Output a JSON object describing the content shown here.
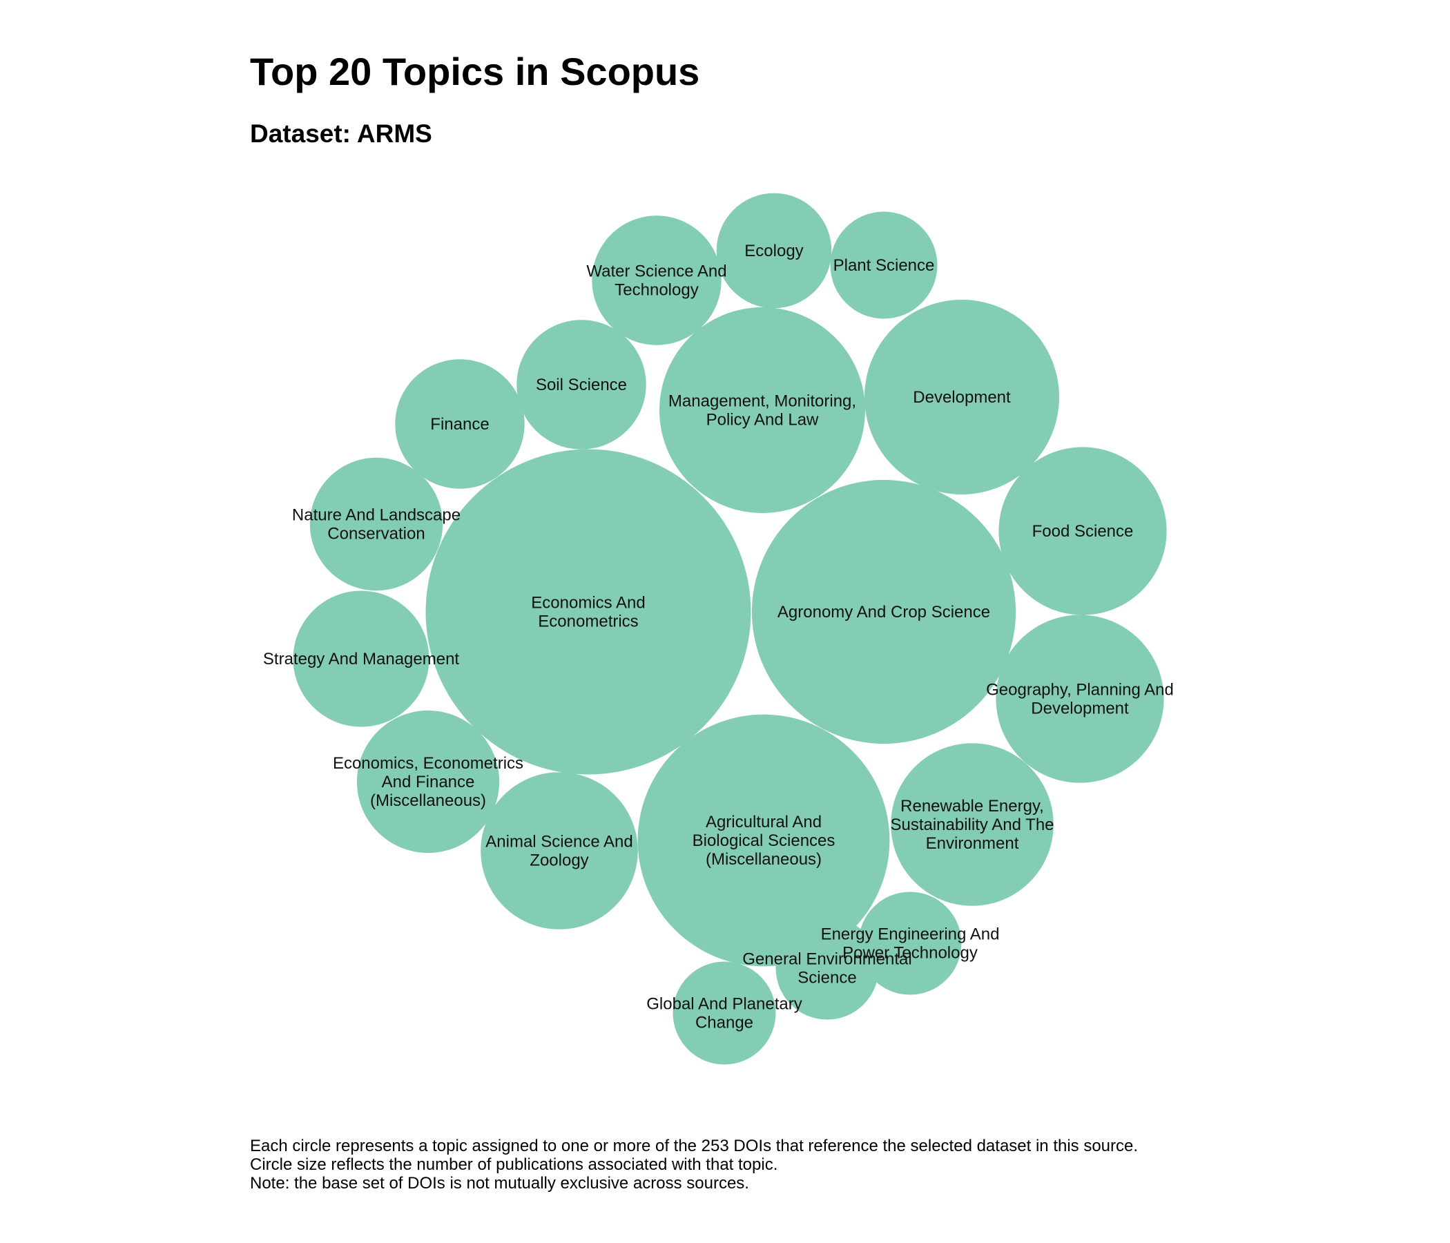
{
  "chart_data": {
    "type": "bubble",
    "title": "Top 20 Topics in Scopus",
    "subtitle": "Dataset: ARMS",
    "color": "#84cdb5",
    "topics": [
      {
        "name": "Economics And Econometrics",
        "label_lines": [
          "Economics And",
          "Econometrics"
        ],
        "value": 120
      },
      {
        "name": "Agronomy And Crop Science",
        "label_lines": [
          "Agronomy And Crop Science"
        ],
        "value": 79
      },
      {
        "name": "Agricultural And Biological Sciences (Miscellaneous)",
        "label_lines": [
          "Agricultural And",
          "Biological Sciences",
          "(Miscellaneous)"
        ],
        "value": 72
      },
      {
        "name": "Management, Monitoring, Policy And Law",
        "label_lines": [
          "Management, Monitoring,",
          "Policy And Law"
        ],
        "value": 48
      },
      {
        "name": "Development",
        "label_lines": [
          "Development"
        ],
        "value": 43
      },
      {
        "name": "Food Science",
        "label_lines": [
          "Food Science"
        ],
        "value": 32
      },
      {
        "name": "Geography, Planning And Development",
        "label_lines": [
          "Geography, Planning And",
          "Development"
        ],
        "value": 32
      },
      {
        "name": "Renewable Energy, Sustainability And The Environment",
        "label_lines": [
          "Renewable Energy,",
          "Sustainability And The",
          "Environment"
        ],
        "value": 30
      },
      {
        "name": "Animal Science And Zoology",
        "label_lines": [
          "Animal Science And",
          "Zoology"
        ],
        "value": 28
      },
      {
        "name": "Economics, Econometrics And Finance (Miscellaneous)",
        "label_lines": [
          "Economics, Econometrics",
          "And Finance",
          "(Miscellaneous)"
        ],
        "value": 23
      },
      {
        "name": "Nature And Landscape Conservation",
        "label_lines": [
          "Nature And Landscape",
          "Conservation"
        ],
        "value": 20
      },
      {
        "name": "Strategy And Management",
        "label_lines": [
          "Strategy And Management"
        ],
        "value": 21
      },
      {
        "name": "Finance",
        "label_lines": [
          "Finance"
        ],
        "value": 19
      },
      {
        "name": "Soil Science",
        "label_lines": [
          "Soil Science"
        ],
        "value": 19
      },
      {
        "name": "Water Science And Technology",
        "label_lines": [
          "Water Science And",
          "Technology"
        ],
        "value": 19
      },
      {
        "name": "Ecology",
        "label_lines": [
          "Ecology"
        ],
        "value": 15
      },
      {
        "name": "Plant Science",
        "label_lines": [
          "Plant Science"
        ],
        "value": 13
      },
      {
        "name": "Energy Engineering And Power Technology",
        "label_lines": [
          "Energy Engineering And",
          "Power Technology"
        ],
        "value": 12
      },
      {
        "name": "General Environmental Science",
        "label_lines": [
          "General Environmental",
          "Science"
        ],
        "value": 12
      },
      {
        "name": "Global And Planetary Change",
        "label_lines": [
          "Global And Planetary",
          "Change"
        ],
        "value": 12
      }
    ]
  },
  "notes": [
    "Each circle represents a topic assigned to one or more of the 253 DOIs that reference the selected dataset in this source.",
    "Circle size reflects the number of publications associated with that topic.",
    "Note: the base set of DOIs is not mutually exclusive across sources."
  ]
}
